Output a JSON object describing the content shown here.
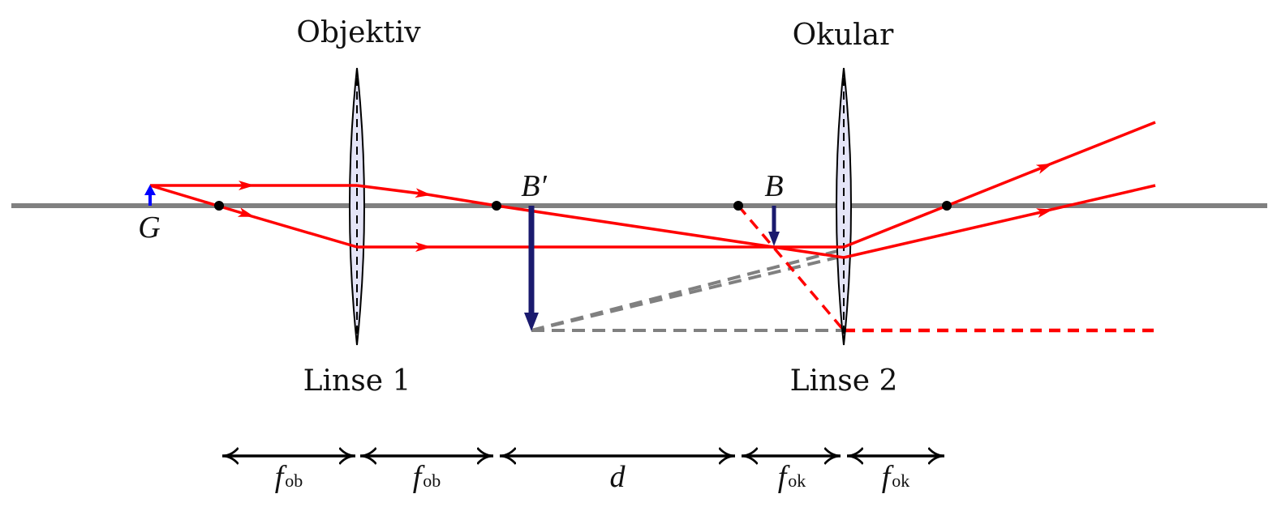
{
  "labels": {
    "objektiv": "Objektiv",
    "okular": "Okular",
    "linse1": "Linse 1",
    "linse2": "Linse 2",
    "object": "G",
    "intermediate_image": "B′",
    "image": "B"
  },
  "dimensions": [
    {
      "symbol": "f",
      "sub": "ob"
    },
    {
      "symbol": "f",
      "sub": "ob"
    },
    {
      "symbol": "d",
      "sub": ""
    },
    {
      "symbol": "f",
      "sub": "ok"
    },
    {
      "symbol": "f",
      "sub": "ok"
    }
  ],
  "colors": {
    "axis": "#808080",
    "ray": "#ff0000",
    "object_arrow": "#0000ff",
    "image_arrow": "#1a1a6e",
    "lens_fill": "#e4e4f7",
    "virtual_ray": "#808080",
    "dimension": "#000000"
  }
}
